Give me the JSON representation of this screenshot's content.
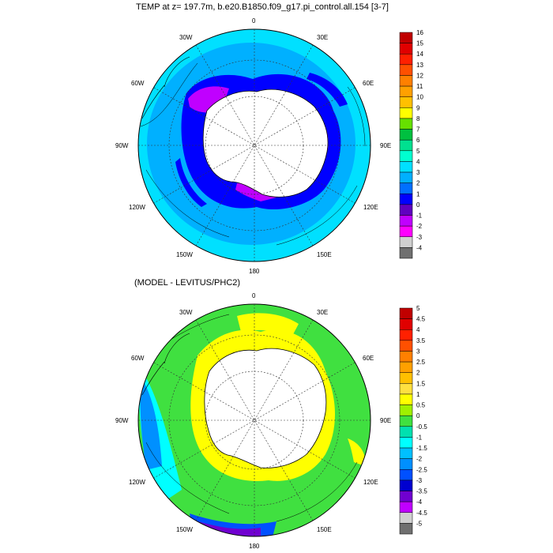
{
  "top_panel": {
    "title": "TEMP at z= 197.7m, b.e20.B1850.f09_g17.pi_control.all.154 [3-7]",
    "colorbar": {
      "labels": [
        "16",
        "15",
        "14",
        "13",
        "12",
        "11",
        "10",
        "9",
        "8",
        "7",
        "6",
        "5",
        "4",
        "3",
        "2",
        "1",
        "0",
        "-1",
        "-2",
        "-3",
        "-4"
      ],
      "colors": [
        "#c00000",
        "#e00000",
        "#ff2000",
        "#ff5000",
        "#ff8000",
        "#ffa000",
        "#ffc000",
        "#ffff00",
        "#66e000",
        "#00c040",
        "#00e090",
        "#00ffd0",
        "#00e0ff",
        "#00b0ff",
        "#0070ff",
        "#0000ff",
        "#6000c0",
        "#c000ff",
        "#ff00ff",
        "#d0d0d0",
        "#707070"
      ]
    },
    "lon_labels": {
      "top": "0",
      "upper_right": "30E",
      "right_upper": "60E",
      "right": "90E",
      "right_lower": "120E",
      "lower_right": "150E",
      "bottom": "180",
      "lower_left": "150W",
      "left_lower": "120W",
      "left": "90W",
      "left_upper": "60W",
      "upper_left": "30W"
    }
  },
  "bottom_panel": {
    "title": "(MODEL - LEVITUS/PHC2)",
    "colorbar": {
      "labels": [
        "5",
        "4.5",
        "4",
        "3.5",
        "3",
        "2.5",
        "2",
        "1.5",
        "1",
        "0.5",
        "0",
        "-0.5",
        "-1",
        "-1.5",
        "-2",
        "-2.5",
        "-3",
        "-3.5",
        "-4",
        "-4.5",
        "-5"
      ],
      "colors": [
        "#c00000",
        "#e00000",
        "#ff2000",
        "#ff5000",
        "#ff8000",
        "#ffa000",
        "#ffc000",
        "#ffe040",
        "#ffff00",
        "#a0f000",
        "#40e040",
        "#00e0b0",
        "#00ffff",
        "#00c0ff",
        "#0090ff",
        "#0050ff",
        "#0000d0",
        "#7000d0",
        "#c000ff",
        "#d0d0d0",
        "#707070"
      ]
    },
    "lon_labels": {
      "top": "0",
      "upper_right": "30E",
      "right_upper": "60E",
      "right": "90E",
      "right_lower": "120E",
      "lower_right": "150E",
      "bottom": "180",
      "lower_left": "150W",
      "left_lower": "120W",
      "left": "90W",
      "left_upper": "60W",
      "upper_left": "30W"
    }
  },
  "colors": {
    "land": "#ffffff",
    "outline": "#000000",
    "top_ocean_main": "#00b0ff",
    "top_ocean_outer": "#00e0ff",
    "top_deep": "#0000ff",
    "top_cold": "#c000ff",
    "bottom_ocean_main": "#40e040",
    "bottom_warm": "#ffff00",
    "bottom_cool": "#00ffff",
    "bottom_deep": "#0050ff"
  }
}
